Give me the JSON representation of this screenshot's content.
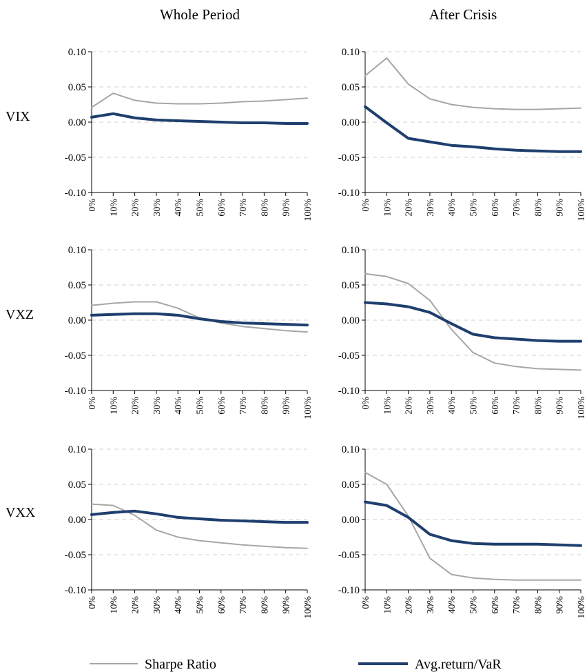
{
  "column_titles": [
    "Whole Period",
    "After Crisis"
  ],
  "row_labels": [
    "VIX",
    "VXZ",
    "VXX"
  ],
  "legend": [
    {
      "label": "Sharpe Ratio",
      "color": "#a6a6a6"
    },
    {
      "label": "Avg.return/VaR",
      "color": "#1f3f6e"
    }
  ],
  "chart_data": [
    {
      "type": "line",
      "row": "VIX",
      "column": "Whole Period",
      "categories": [
        "0%",
        "10%",
        "20%",
        "30%",
        "40%",
        "50%",
        "60%",
        "70%",
        "80%",
        "90%",
        "100%"
      ],
      "y_ticks": [
        "0.10",
        "0.05",
        "0.00",
        "-0.05",
        "-0.10"
      ],
      "ylim": [
        -0.1,
        0.1
      ],
      "grid": "dashed-horizontal",
      "series": [
        {
          "name": "Sharpe Ratio",
          "values": [
            0.021,
            0.041,
            0.031,
            0.027,
            0.026,
            0.026,
            0.027,
            0.029,
            0.03,
            0.032,
            0.034
          ]
        },
        {
          "name": "Avg.return/VaR",
          "values": [
            0.007,
            0.012,
            0.006,
            0.003,
            0.002,
            0.001,
            0.0,
            -0.001,
            -0.001,
            -0.002,
            -0.002
          ]
        }
      ]
    },
    {
      "type": "line",
      "row": "VIX",
      "column": "After Crisis",
      "categories": [
        "0%",
        "10%",
        "20%",
        "30%",
        "40%",
        "50%",
        "60%",
        "70%",
        "80%",
        "90%",
        "100%"
      ],
      "y_ticks": [
        "0.10",
        "0.05",
        "0.00",
        "-0.05",
        "-0.10"
      ],
      "ylim": [
        -0.1,
        0.1
      ],
      "grid": "dashed-horizontal",
      "series": [
        {
          "name": "Sharpe Ratio",
          "values": [
            0.066,
            0.091,
            0.054,
            0.033,
            0.025,
            0.021,
            0.019,
            0.018,
            0.018,
            0.019,
            0.02
          ]
        },
        {
          "name": "Avg.return/VaR",
          "values": [
            0.022,
            -0.001,
            -0.023,
            -0.028,
            -0.033,
            -0.035,
            -0.038,
            -0.04,
            -0.041,
            -0.042,
            -0.042
          ]
        }
      ]
    },
    {
      "type": "line",
      "row": "VXZ",
      "column": "Whole Period",
      "categories": [
        "0%",
        "10%",
        "20%",
        "30%",
        "40%",
        "50%",
        "60%",
        "70%",
        "80%",
        "90%",
        "100%"
      ],
      "y_ticks": [
        "0.10",
        "0.05",
        "0.00",
        "-0.05",
        "-0.10"
      ],
      "ylim": [
        -0.1,
        0.1
      ],
      "grid": "dashed-horizontal",
      "series": [
        {
          "name": "Sharpe Ratio",
          "values": [
            0.021,
            0.024,
            0.026,
            0.026,
            0.017,
            0.003,
            -0.004,
            -0.009,
            -0.012,
            -0.015,
            -0.017
          ]
        },
        {
          "name": "Avg.return/VaR",
          "values": [
            0.007,
            0.008,
            0.009,
            0.009,
            0.007,
            0.002,
            -0.002,
            -0.004,
            -0.005,
            -0.006,
            -0.007
          ]
        }
      ]
    },
    {
      "type": "line",
      "row": "VXZ",
      "column": "After Crisis",
      "categories": [
        "0%",
        "10%",
        "20%",
        "30%",
        "40%",
        "50%",
        "60%",
        "70%",
        "80%",
        "90%",
        "100%"
      ],
      "y_ticks": [
        "0.10",
        "0.05",
        "0.00",
        "-0.05",
        "-0.10"
      ],
      "ylim": [
        -0.1,
        0.1
      ],
      "grid": "dashed-horizontal",
      "series": [
        {
          "name": "Sharpe Ratio",
          "values": [
            0.066,
            0.062,
            0.052,
            0.028,
            -0.013,
            -0.046,
            -0.061,
            -0.066,
            -0.069,
            -0.07,
            -0.071
          ]
        },
        {
          "name": "Avg.return/VaR",
          "values": [
            0.025,
            0.023,
            0.019,
            0.011,
            -0.005,
            -0.02,
            -0.025,
            -0.027,
            -0.029,
            -0.03,
            -0.03
          ]
        }
      ]
    },
    {
      "type": "line",
      "row": "VXX",
      "column": "Whole Period",
      "categories": [
        "0%",
        "10%",
        "20%",
        "30%",
        "40%",
        "50%",
        "60%",
        "70%",
        "80%",
        "90%",
        "100%"
      ],
      "y_ticks": [
        "0.10",
        "0.05",
        "0.00",
        "-0.05",
        "-0.10"
      ],
      "ylim": [
        -0.1,
        0.1
      ],
      "grid": "dashed-horizontal",
      "series": [
        {
          "name": "Sharpe Ratio",
          "values": [
            0.022,
            0.02,
            0.006,
            -0.015,
            -0.025,
            -0.03,
            -0.033,
            -0.036,
            -0.038,
            -0.04,
            -0.041
          ]
        },
        {
          "name": "Avg.return/VaR",
          "values": [
            0.007,
            0.01,
            0.012,
            0.008,
            0.003,
            0.001,
            -0.001,
            -0.002,
            -0.003,
            -0.004,
            -0.004
          ]
        }
      ]
    },
    {
      "type": "line",
      "row": "VXX",
      "column": "After Crisis",
      "categories": [
        "0%",
        "10%",
        "20%",
        "30%",
        "40%",
        "50%",
        "60%",
        "70%",
        "80%",
        "90%",
        "100%"
      ],
      "y_ticks": [
        "0.10",
        "0.05",
        "0.00",
        "-0.05",
        "-0.10"
      ],
      "ylim": [
        -0.1,
        0.1
      ],
      "grid": "dashed-horizontal",
      "series": [
        {
          "name": "Sharpe Ratio",
          "values": [
            0.067,
            0.05,
            0.005,
            -0.055,
            -0.078,
            -0.083,
            -0.085,
            -0.086,
            -0.086,
            -0.086,
            -0.086
          ]
        },
        {
          "name": "Avg.return/VaR",
          "values": [
            0.025,
            0.02,
            0.003,
            -0.021,
            -0.03,
            -0.034,
            -0.035,
            -0.035,
            -0.035,
            -0.036,
            -0.037
          ]
        }
      ]
    }
  ]
}
